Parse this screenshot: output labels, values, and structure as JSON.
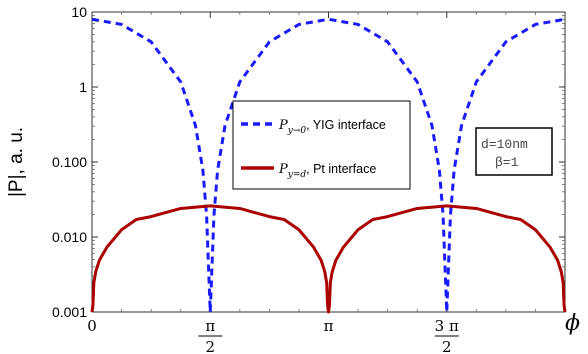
{
  "chart_data": {
    "type": "line",
    "xlabel": "ϕ",
    "ylabel": "|P|, a. u.",
    "yscale": "log",
    "ylim": [
      0.001,
      10
    ],
    "xlim": [
      0,
      6.2832
    ],
    "grid": false,
    "y_ticks": [
      {
        "value": 0.001,
        "label": "0.001"
      },
      {
        "value": 0.01,
        "label": "0.010"
      },
      {
        "value": 0.1,
        "label": "0.100"
      },
      {
        "value": 1,
        "label": "1"
      },
      {
        "value": 10,
        "label": "10"
      }
    ],
    "x_ticks": [
      {
        "value": 0,
        "label": "0"
      },
      {
        "value": 1.5708,
        "num": "π",
        "den": "2"
      },
      {
        "value": 3.1416,
        "label": "π"
      },
      {
        "value": 4.7124,
        "num": "3 π",
        "den": "2"
      }
    ],
    "series": [
      {
        "name": "P_{y→0}, YIG interface",
        "symbol": "P",
        "subscript": "y→0",
        "suffix": ", YIG interface",
        "color": "#1a1aff",
        "dash": "dashed",
        "x": [
          0,
          0.3927,
          0.7854,
          1.1781,
          1.3744,
          1.4726,
          1.5217,
          1.5708,
          1.6199,
          1.669,
          1.7671,
          1.9635,
          2.3562,
          2.7489,
          3.1416,
          3.5343,
          3.927,
          4.3197,
          4.5161,
          4.6142,
          4.6633,
          4.7124,
          4.7615,
          4.8106,
          4.9087,
          5.1051,
          5.4978,
          5.8905,
          6.2832
        ],
        "y": [
          8.0,
          6.83,
          4.0,
          1.17,
          0.307,
          0.0781,
          0.0196,
          0.001,
          0.0196,
          0.0781,
          0.307,
          1.17,
          4.0,
          6.83,
          8.0,
          6.83,
          4.0,
          1.17,
          0.307,
          0.0781,
          0.0196,
          0.001,
          0.0196,
          0.0781,
          0.307,
          1.17,
          4.0,
          6.83,
          8.0
        ]
      },
      {
        "name": "P_{y=d}, Pt interface",
        "symbol": "P",
        "subscript": "y=d",
        "suffix": ", Pt interface",
        "color": "#aa0000",
        "dash": "solid",
        "x": [
          0.0,
          0.0123,
          0.0245,
          0.0491,
          0.0982,
          0.1963,
          0.3927,
          0.589,
          0.7854,
          1.1781,
          1.5708,
          1.9635,
          2.3562,
          2.5525,
          2.7489,
          2.9452,
          3.0434,
          3.0925,
          3.1171,
          3.1293,
          3.1416,
          3.1539,
          3.1661,
          3.1907,
          3.2398,
          3.3379,
          3.5343,
          3.7306,
          3.927,
          4.3197,
          4.7124,
          5.1051,
          5.4978,
          5.6941,
          5.8905,
          6.0868,
          6.185,
          6.2341,
          6.2587,
          6.2709,
          6.2832
        ],
        "y": [
          0.001,
          0.00123,
          0.00245,
          0.00343,
          0.0049,
          0.00728,
          0.0125,
          0.0171,
          0.0187,
          0.024,
          0.026,
          0.024,
          0.0187,
          0.0171,
          0.0125,
          0.00728,
          0.0049,
          0.00343,
          0.00245,
          0.00123,
          0.001,
          0.00123,
          0.00245,
          0.00343,
          0.0049,
          0.00728,
          0.0125,
          0.0171,
          0.0187,
          0.024,
          0.026,
          0.024,
          0.0187,
          0.0171,
          0.0125,
          0.00728,
          0.0049,
          0.00343,
          0.00245,
          0.00123,
          0.001
        ]
      }
    ],
    "legend_position": "center",
    "annotation_lines": [
      "d=10nm",
      "β=1"
    ]
  }
}
